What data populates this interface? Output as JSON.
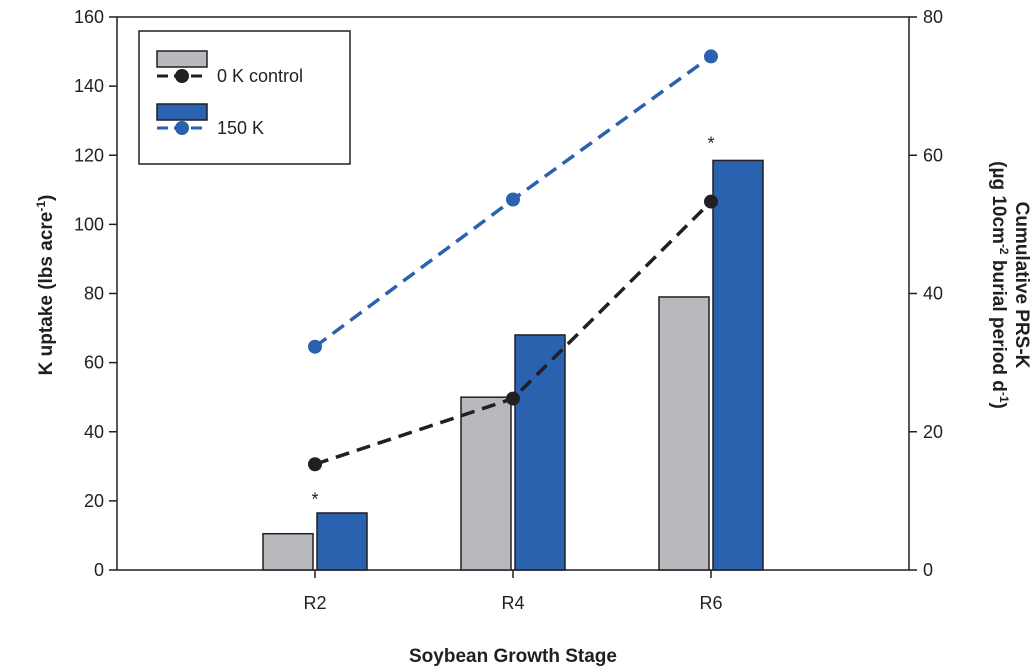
{
  "chart_data": {
    "type": "bar",
    "categories": [
      "R2",
      "R4",
      "R6"
    ],
    "xlabel": "Soybean Growth Stage",
    "ylabel": {
      "main": "K uptake (lbs acre",
      "sup": "-1",
      "tail": ")"
    },
    "y2label": {
      "line1": "Cumulative PRS-K",
      "line2_a": "(µg 10cm",
      "line2_sup1": "-2",
      "line2_b": " burial period d",
      "line2_sup2": "-1",
      "line2_c": ")"
    },
    "ylim": [
      0,
      160
    ],
    "yticks": [
      0,
      20,
      40,
      60,
      80,
      100,
      120,
      140,
      160
    ],
    "y2lim": [
      0,
      80
    ],
    "y2ticks": [
      0,
      20,
      40,
      60,
      80
    ],
    "bar_series": [
      {
        "name": "0 K control",
        "values": [
          10.5,
          50,
          79
        ],
        "color": "#b8b9bd"
      },
      {
        "name": "150 K",
        "values": [
          16.5,
          68,
          118.5
        ],
        "color": "#2a62b0"
      }
    ],
    "line_series": [
      {
        "name": "0 K control",
        "axis": "right",
        "values": [
          15.3,
          24.8,
          53.3
        ],
        "color": "#231f20"
      },
      {
        "name": "150 K",
        "axis": "right",
        "values": [
          32.3,
          53.6,
          74.3
        ],
        "color": "#2a62b0"
      }
    ],
    "annotations": [
      {
        "text": "*",
        "category": "R2",
        "y": 21
      },
      {
        "text": "*",
        "category": "R6",
        "y": 124
      }
    ],
    "legend": {
      "position": "top-left",
      "entries": [
        "0 K control",
        "150 K"
      ]
    },
    "grid": false
  }
}
